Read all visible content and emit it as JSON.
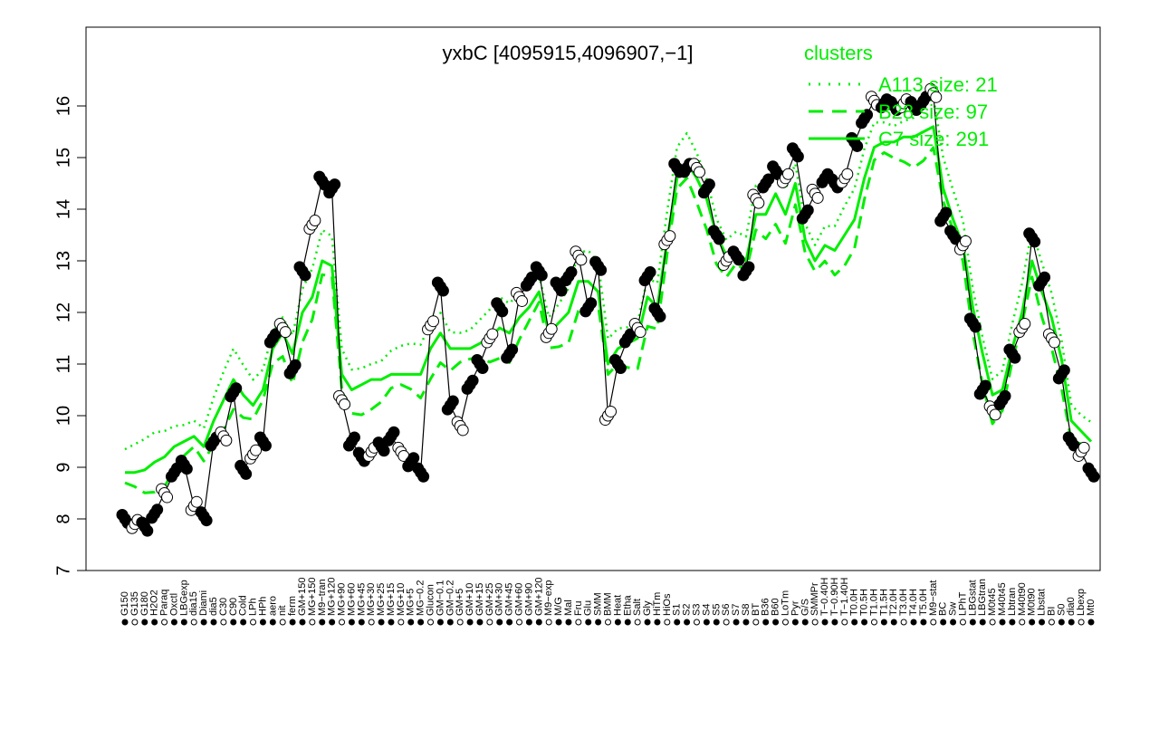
{
  "chart_data": {
    "type": "line",
    "title": "yxbC [4095915,4096907,−1]",
    "xlabel": "",
    "ylabel": "",
    "ylim": [
      7,
      16
    ],
    "yticks": [
      7,
      8,
      9,
      10,
      11,
      12,
      13,
      14,
      15,
      16
    ],
    "grid": false,
    "legend": {
      "title": "clusters",
      "placement": "top-right",
      "entries": [
        {
          "label": "A113 size: 21",
          "style": "dotted",
          "color": "#00ee00"
        },
        {
          "label": "B28 size: 97",
          "style": "dashed",
          "color": "#00ee00"
        },
        {
          "label": "C7 size: 291",
          "style": "solid",
          "color": "#00ee00"
        }
      ]
    },
    "x_tick_labels": [
      "G150",
      "G135",
      "G180",
      "H2O2",
      "Paraq",
      "Oxctl",
      "LBGexp",
      "dia15",
      "Diami",
      "dia5",
      "C30",
      "C90",
      "Cold",
      "LPh",
      "HPh",
      "aero",
      "nit",
      "ferm",
      "GM+150",
      "MG+150",
      "M9−tran",
      "MG+120",
      "MG+90",
      "MG+60",
      "MG+45",
      "MG+30",
      "MG+25",
      "MG+15",
      "MG+10",
      "MG+5",
      "MG−0.2",
      "Glucon",
      "GM−0.1",
      "GM−0.2",
      "GM+5",
      "GM+10",
      "GM+15",
      "GM+25",
      "GM+30",
      "GM+45",
      "GM+60",
      "GM+90",
      "GM+120",
      "M9−exp",
      "M/G",
      "Mal",
      "Fru",
      "Glu",
      "SMM",
      "BMM",
      "Heat",
      "Etha",
      "Salt",
      "Gly",
      "HiTm",
      "HiOs",
      "S1",
      "S2",
      "S3",
      "S4",
      "S5",
      "S6",
      "S7",
      "S8",
      "BT",
      "B36",
      "B60",
      "LoTm",
      "Pyr",
      "G/S",
      "SMMPr",
      "T−0.40H",
      "T−0.90H",
      "T−1.40H",
      "T0.0H",
      "T0.5H",
      "T1.0H",
      "T1.5H",
      "T2.0H",
      "T3.0H",
      "T4.0H",
      "T5.0H",
      "M9−stat",
      "BC",
      "Sw",
      "LPhT",
      "LBGstat",
      "LBGtran",
      "M0t45",
      "M40t45",
      "Lbtran",
      "M40t90",
      "M0t90",
      "Lbstat",
      "BI",
      "S0",
      "dia0",
      "Lbexp",
      "Mt0"
    ],
    "series": [
      {
        "name": "yxbC",
        "color": "#000000",
        "values": [
          8.0,
          7.9,
          7.85,
          8.1,
          8.5,
          8.9,
          9.05,
          8.25,
          8.05,
          9.5,
          9.6,
          10.45,
          8.95,
          9.25,
          9.5,
          11.5,
          11.7,
          10.9,
          12.8,
          13.7,
          14.55,
          14.4,
          10.3,
          9.5,
          9.2,
          9.3,
          9.4,
          9.6,
          9.3,
          9.1,
          8.9,
          11.75,
          12.5,
          10.2,
          9.8,
          10.6,
          11.0,
          11.5,
          12.1,
          11.2,
          12.3,
          12.6,
          12.8,
          11.6,
          12.5,
          12.7,
          13.1,
          12.1,
          12.9,
          10.0,
          11.0,
          11.5,
          11.7,
          12.7,
          12.0,
          13.4,
          14.8,
          14.8,
          14.8,
          14.4,
          13.5,
          13.0,
          13.1,
          12.8,
          14.2,
          14.5,
          14.75,
          14.6,
          15.1,
          13.9,
          14.3,
          14.6,
          14.5,
          14.6,
          15.3,
          15.75,
          16.1,
          16.05,
          16.0,
          16.05,
          16.0,
          16.1,
          16.25,
          13.85,
          13.5,
          13.3,
          11.8,
          10.5,
          10.1,
          10.3,
          11.2,
          11.7,
          13.45,
          12.6,
          11.5,
          10.8,
          9.5,
          9.3,
          8.9
        ]
      },
      {
        "name": "",
        "color": "#00ee00",
        "values": [
          8.9,
          8.9,
          8.95,
          9.1,
          9.2,
          9.4,
          9.5,
          9.6,
          9.4,
          9.9,
          10.3,
          10.7,
          10.4,
          10.2,
          10.5,
          11.3,
          11.6,
          11.2,
          12.0,
          12.3,
          13.0,
          12.9,
          10.8,
          10.5,
          10.6,
          10.7,
          10.7,
          10.8,
          10.8,
          10.8,
          10.8,
          11.3,
          11.6,
          11.3,
          11.3,
          11.3,
          11.4,
          11.5,
          11.7,
          11.6,
          11.9,
          12.1,
          12.4,
          11.6,
          11.8,
          12.0,
          12.6,
          12.6,
          12.4,
          11.0,
          11.3,
          11.4,
          11.5,
          12.3,
          12.1,
          13.4,
          14.6,
          14.9,
          14.6,
          14.2,
          13.5,
          13.1,
          13.2,
          13.0,
          13.9,
          13.9,
          14.3,
          13.9,
          14.5,
          13.4,
          13.0,
          13.3,
          13.2,
          13.5,
          13.8,
          14.6,
          15.2,
          15.3,
          15.3,
          15.4,
          15.4,
          15.5,
          15.6,
          14.4,
          13.8,
          13.3,
          12.1,
          11.2,
          10.4,
          10.5,
          11.3,
          12.0,
          13.0,
          12.4,
          11.9,
          11.1,
          9.9,
          9.7,
          9.5
        ]
      }
    ]
  }
}
